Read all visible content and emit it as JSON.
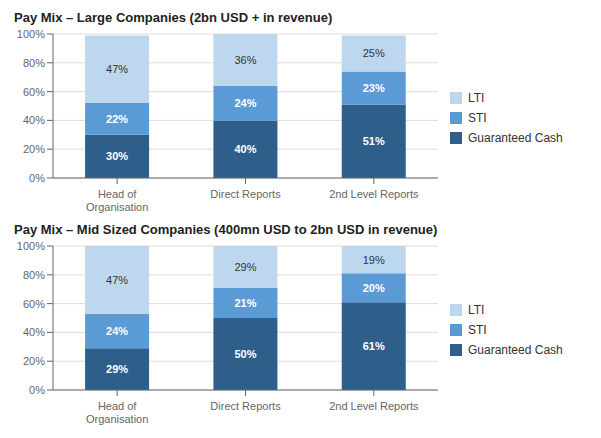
{
  "chart_data": [
    {
      "type": "bar",
      "stacked": true,
      "title": "Pay Mix – Large Companies (2bn USD + in revenue)",
      "categories": [
        "Head of\nOrganisation",
        "Direct Reports",
        "2nd Level Reports"
      ],
      "series": [
        {
          "name": "Guaranteed Cash",
          "color": "#2E5F8A",
          "values": [
            30,
            40,
            51
          ],
          "value_labels": [
            "30%",
            "40%",
            "51%"
          ]
        },
        {
          "name": "STI",
          "color": "#5B9BD5",
          "values": [
            22,
            24,
            23
          ],
          "value_labels": [
            "22%",
            "24%",
            "23%"
          ]
        },
        {
          "name": "LTI",
          "color": "#BDD7EE",
          "values": [
            47,
            36,
            25
          ],
          "value_labels": [
            "47%",
            "36%",
            "25%"
          ]
        }
      ],
      "ylim": [
        0,
        100
      ],
      "yticks": [
        {
          "value": 0,
          "label": "0%"
        },
        {
          "value": 20,
          "label": "20%"
        },
        {
          "value": 40,
          "label": "40%"
        },
        {
          "value": 60,
          "label": "60%"
        },
        {
          "value": 80,
          "label": "80%"
        },
        {
          "value": 100,
          "label": "100%"
        }
      ],
      "grid": true,
      "legend": "right",
      "data_labels": true
    },
    {
      "type": "bar",
      "stacked": true,
      "title": "Pay Mix – Mid Sized Companies (400mn USD to 2bn USD in revenue)",
      "categories": [
        "Head of\nOrganisation",
        "Direct Reports",
        "2nd Level Reports"
      ],
      "series": [
        {
          "name": "Guaranteed Cash",
          "color": "#2E5F8A",
          "values": [
            29,
            50,
            61
          ],
          "value_labels": [
            "29%",
            "50%",
            "61%"
          ]
        },
        {
          "name": "STI",
          "color": "#5B9BD5",
          "values": [
            24,
            21,
            20
          ],
          "value_labels": [
            "24%",
            "21%",
            "20%"
          ]
        },
        {
          "name": "LTI",
          "color": "#BDD7EE",
          "values": [
            47,
            29,
            19
          ],
          "value_labels": [
            "47%",
            "29%",
            "19%"
          ]
        }
      ],
      "ylim": [
        0,
        100
      ],
      "yticks": [
        {
          "value": 0,
          "label": "0%"
        },
        {
          "value": 20,
          "label": "20%"
        },
        {
          "value": 40,
          "label": "40%"
        },
        {
          "value": 60,
          "label": "60%"
        },
        {
          "value": 80,
          "label": "80%"
        },
        {
          "value": 100,
          "label": "100%"
        }
      ],
      "grid": true,
      "legend": "right",
      "data_labels": true
    }
  ]
}
